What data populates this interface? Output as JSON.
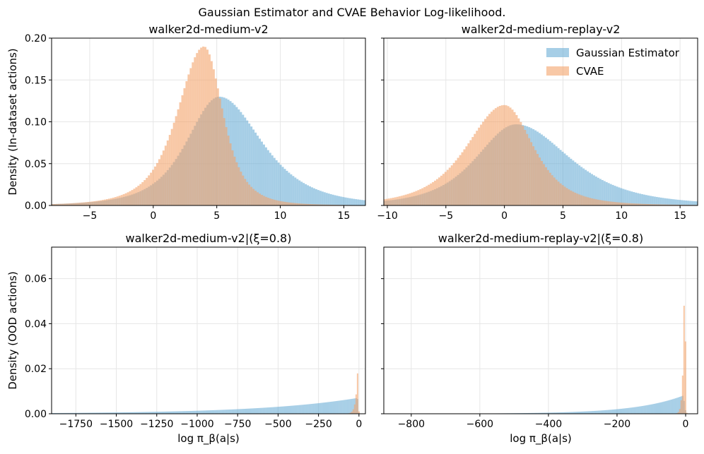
{
  "figure": {
    "suptitle": "Gaussian Estimator and CVAE Behavior Log-likelihood.",
    "colors": {
      "gaussian": "#6baed6",
      "cvae": "#f4a46b",
      "grid": "#e6e6e6",
      "axis": "#000000"
    }
  },
  "legend": {
    "placement": "top-right",
    "entries": [
      "Gaussian Estimator",
      "CVAE"
    ]
  },
  "chart_data": [
    {
      "type": "histogram",
      "title": "walker2d-medium-v2",
      "xlabel": "",
      "ylabel": "Density (In-dataset actions)",
      "xlim": [
        -8,
        16.7
      ],
      "ylim": [
        0,
        0.2
      ],
      "xticks": [
        "−5",
        "0",
        "5",
        "10",
        "15"
      ],
      "xtick_values": [
        -5,
        0,
        5,
        10,
        15
      ],
      "yticks": [
        "0.00",
        "0.05",
        "0.10",
        "0.15",
        "0.20"
      ],
      "ytick_values": [
        0,
        0.05,
        0.1,
        0.15,
        0.2
      ],
      "grid": true,
      "series": [
        {
          "name": "Gaussian Estimator",
          "peak_x": 5.2,
          "peak_density": 0.13,
          "left_sigma": 2.7,
          "right_sigma": 3.5
        },
        {
          "name": "CVAE",
          "peak_x": 4.0,
          "peak_density": 0.19,
          "left_sigma": 2.2,
          "right_sigma": 1.55
        }
      ]
    },
    {
      "type": "histogram",
      "title": "walker2d-medium-replay-v2",
      "xlabel": "",
      "ylabel": "",
      "xlim": [
        -10.3,
        16.5
      ],
      "ylim": [
        0,
        0.2
      ],
      "xticks": [
        "−10",
        "−5",
        "0",
        "5",
        "10",
        "15"
      ],
      "xtick_values": [
        -10,
        -5,
        0,
        5,
        10,
        15
      ],
      "yticks": [],
      "ytick_values": [
        0,
        0.05,
        0.1,
        0.15,
        0.2
      ],
      "grid": true,
      "series": [
        {
          "name": "Gaussian Estimator",
          "peak_x": 1.0,
          "peak_density": 0.097,
          "left_sigma": 3.6,
          "right_sigma": 4.8
        },
        {
          "name": "CVAE",
          "peak_x": 0.0,
          "peak_density": 0.12,
          "left_sigma": 3.4,
          "right_sigma": 2.6
        }
      ]
    },
    {
      "type": "histogram",
      "title": "walker2d-medium-v2|(ξ=0.8)",
      "xlabel": "log π_β(a|s)",
      "ylabel": "Density (OOD actions)",
      "xlim": [
        -1900,
        40
      ],
      "ylim": [
        0,
        0.074
      ],
      "xticks": [
        "−1750",
        "−1500",
        "−1250",
        "−1000",
        "−750",
        "−500",
        "−250",
        "0"
      ],
      "xtick_values": [
        -1750,
        -1500,
        -1250,
        -1000,
        -750,
        -500,
        -250,
        0
      ],
      "yticks": [
        "0.00",
        "0.02",
        "0.04",
        "0.06"
      ],
      "ytick_values": [
        0,
        0.02,
        0.04,
        0.06
      ],
      "grid": true,
      "series": [
        {
          "name": "Gaussian Estimator",
          "peak_x": -10,
          "peak_density": 0.007,
          "tail_scale": 600
        },
        {
          "name": "CVAE",
          "peak_x": -5,
          "peak_density": 0.024,
          "tail_scale": 12
        }
      ]
    },
    {
      "type": "histogram",
      "title": "walker2d-medium-replay-v2|(ξ=0.8)",
      "xlabel": "log π_β(a|s)",
      "ylabel": "",
      "xlim": [
        -880,
        35
      ],
      "ylim": [
        0,
        0.074
      ],
      "xticks": [
        "−800",
        "−600",
        "−400",
        "−200",
        "0"
      ],
      "xtick_values": [
        -800,
        -600,
        -400,
        -200,
        0
      ],
      "yticks": [],
      "ytick_values": [
        0,
        0.02,
        0.04,
        0.06
      ],
      "grid": true,
      "series": [
        {
          "name": "Gaussian Estimator",
          "peak_x": -8,
          "peak_density": 0.008,
          "tail_scale": 140
        },
        {
          "name": "CVAE",
          "peak_x": -3,
          "peak_density": 0.07,
          "tail_scale": 4
        }
      ]
    }
  ]
}
